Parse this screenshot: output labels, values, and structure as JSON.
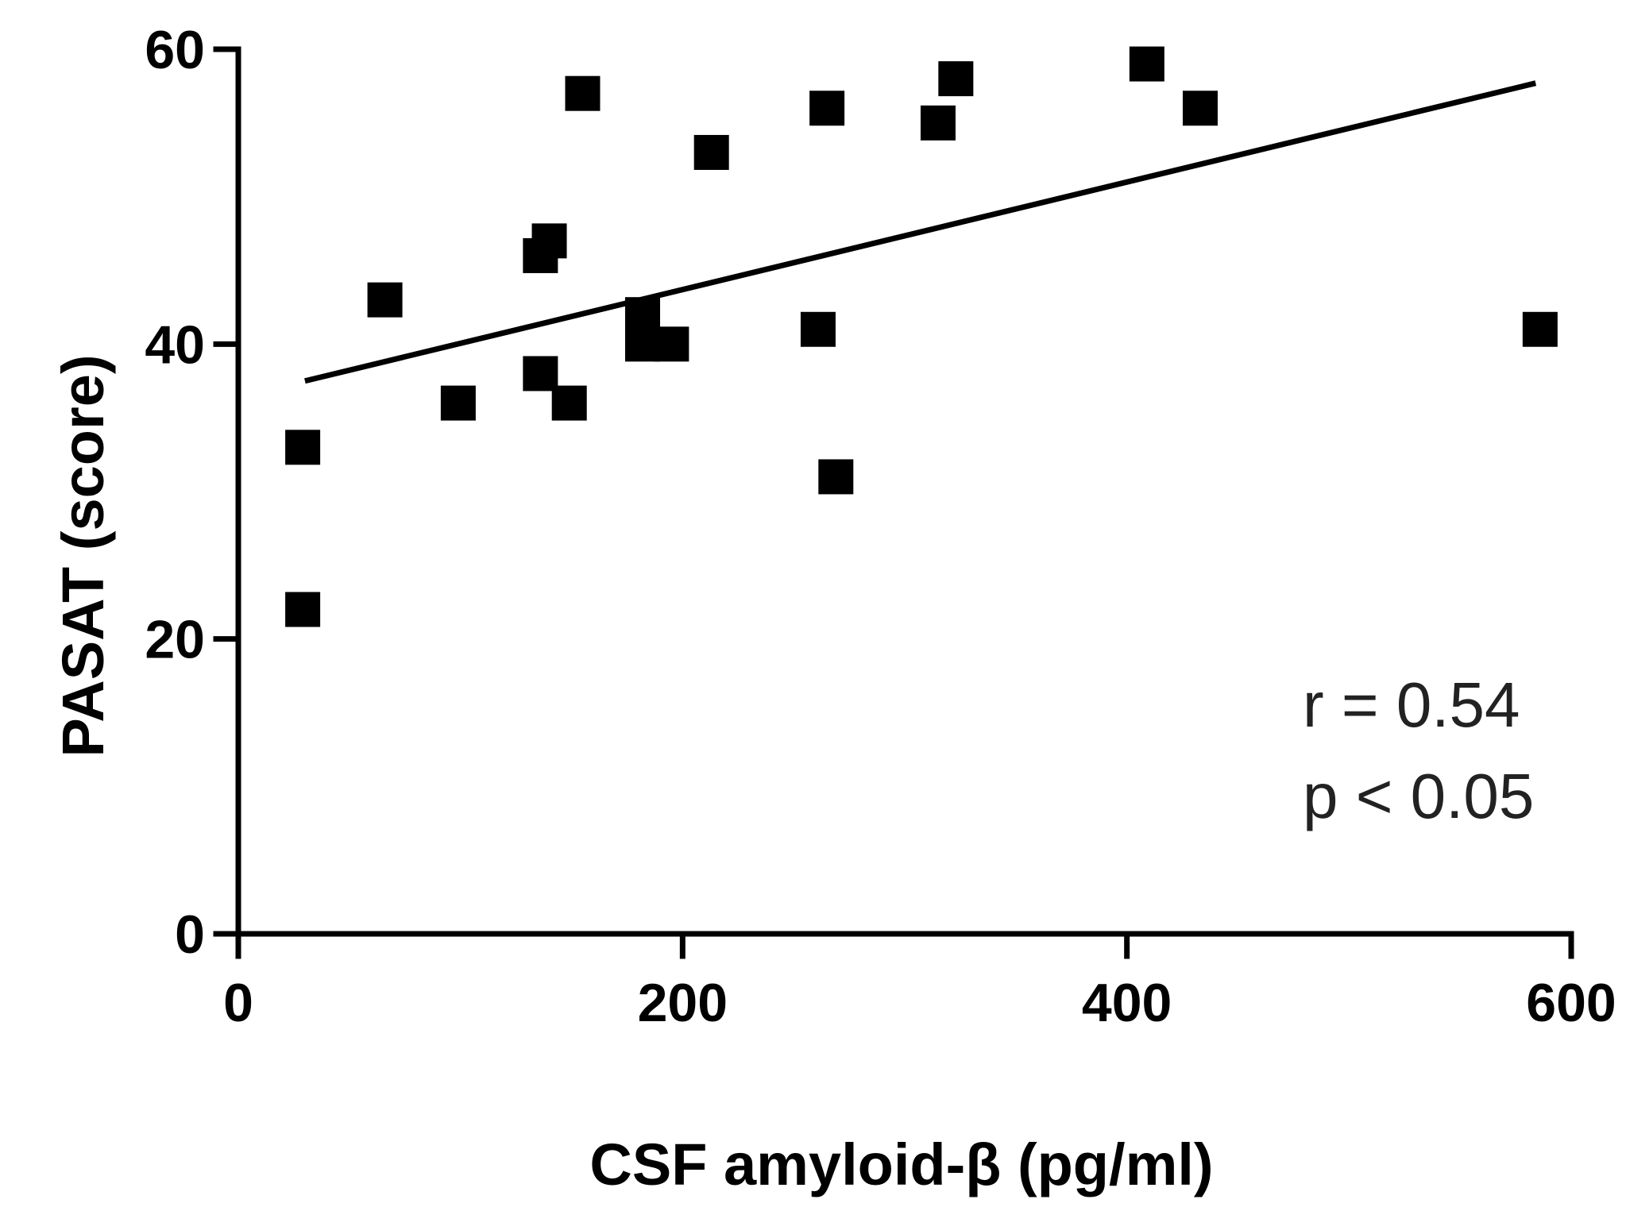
{
  "chart_data": {
    "type": "scatter",
    "title": "",
    "xlabel": "CSF amyloid-β  (pg/ml)",
    "ylabel": "PASAT (score)",
    "xlim": [
      0,
      600
    ],
    "ylim": [
      0,
      60
    ],
    "x_ticks": [
      0,
      200,
      400,
      600
    ],
    "y_ticks": [
      0,
      20,
      40,
      60
    ],
    "x_tick_labels": [
      "0",
      "200",
      "400",
      "600"
    ],
    "y_tick_labels": [
      "0",
      "20",
      "40",
      "60"
    ],
    "grid": false,
    "marker": "square",
    "marker_color": "#000000",
    "points": [
      {
        "x": 29,
        "y": 22
      },
      {
        "x": 29,
        "y": 33
      },
      {
        "x": 66,
        "y": 43
      },
      {
        "x": 99,
        "y": 36
      },
      {
        "x": 136,
        "y": 46
      },
      {
        "x": 140,
        "y": 47
      },
      {
        "x": 136,
        "y": 38
      },
      {
        "x": 149,
        "y": 36
      },
      {
        "x": 155,
        "y": 57
      },
      {
        "x": 182,
        "y": 42
      },
      {
        "x": 182,
        "y": 40
      },
      {
        "x": 195,
        "y": 40
      },
      {
        "x": 213,
        "y": 53
      },
      {
        "x": 261,
        "y": 41
      },
      {
        "x": 265,
        "y": 56
      },
      {
        "x": 269,
        "y": 31
      },
      {
        "x": 315,
        "y": 55
      },
      {
        "x": 323,
        "y": 58
      },
      {
        "x": 409,
        "y": 59
      },
      {
        "x": 433,
        "y": 56
      },
      {
        "x": 586,
        "y": 41
      }
    ],
    "trendline": {
      "x": [
        30,
        584
      ],
      "y": [
        37.5,
        57.7
      ]
    },
    "annotations": [
      "r = 0.54",
      "p < 0.05"
    ]
  }
}
